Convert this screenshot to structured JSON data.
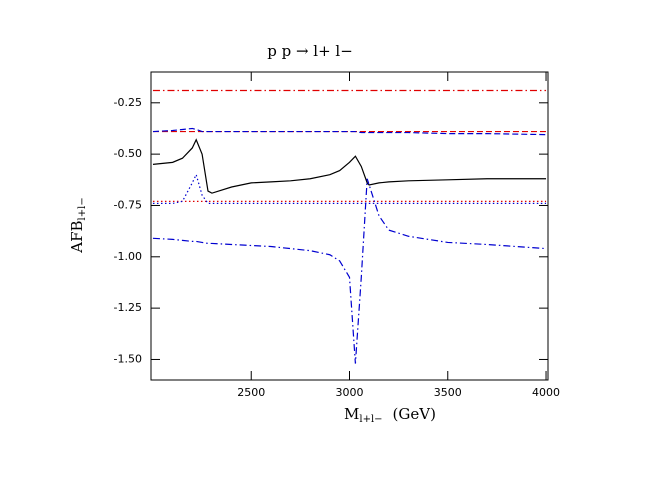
{
  "chart_data": {
    "type": "line",
    "title": "p p → l+ l−",
    "y_label": {
      "main": "AFB",
      "sub": "l+l−"
    },
    "x_label": {
      "main": "M",
      "sub": "l+l−",
      "unit": "(GeV)"
    },
    "xlim": [
      1990,
      4010
    ],
    "xticks": [
      2500,
      3000,
      3500,
      4000
    ],
    "ylim": [
      -1.6,
      -0.1
    ],
    "yticks": [
      -0.25,
      {
        "value": -0.5,
        "label": "-0.50"
      },
      -0.75,
      {
        "value": -1.0,
        "label": "-1.00"
      },
      -1.25,
      {
        "value": -1.5,
        "label": "-1.50"
      }
    ],
    "x": [
      2000,
      2100,
      2150,
      2200,
      2220,
      2250,
      2280,
      2300,
      2400,
      2500,
      2600,
      2700,
      2800,
      2900,
      2950,
      3000,
      3030,
      3060,
      3090,
      3100,
      3150,
      3200,
      3300,
      3500,
      3700,
      4000
    ],
    "series": [
      {
        "color": "#e00000",
        "dash": "dashdot",
        "values": [
          -0.19,
          -0.19,
          -0.19,
          -0.19,
          -0.19,
          -0.19,
          -0.19,
          -0.19,
          -0.19,
          -0.19,
          -0.19,
          -0.19,
          -0.19,
          -0.19,
          -0.19,
          -0.19,
          -0.19,
          -0.19,
          -0.19,
          -0.19,
          -0.19,
          -0.19,
          -0.19,
          -0.19,
          -0.19,
          -0.19
        ]
      },
      {
        "color": "#e00000",
        "dash": "dashed",
        "values": [
          -0.39,
          -0.39,
          -0.39,
          -0.39,
          -0.39,
          -0.39,
          -0.39,
          -0.39,
          -0.39,
          -0.39,
          -0.39,
          -0.39,
          -0.39,
          -0.39,
          -0.39,
          -0.39,
          -0.39,
          -0.39,
          -0.39,
          -0.39,
          -0.39,
          -0.39,
          -0.39,
          -0.39,
          -0.39,
          -0.39
        ]
      },
      {
        "color": "#0000d0",
        "dash": "dashed",
        "values": [
          -0.39,
          -0.385,
          -0.38,
          -0.375,
          -0.38,
          -0.39,
          -0.39,
          -0.39,
          -0.39,
          -0.39,
          -0.39,
          -0.39,
          -0.39,
          -0.39,
          -0.39,
          -0.39,
          -0.39,
          -0.395,
          -0.395,
          -0.395,
          -0.395,
          -0.395,
          -0.395,
          -0.4,
          -0.4,
          -0.405
        ]
      },
      {
        "color": "#000000",
        "dash": "solid",
        "values": [
          -0.55,
          -0.54,
          -0.52,
          -0.47,
          -0.43,
          -0.5,
          -0.68,
          -0.69,
          -0.66,
          -0.64,
          -0.635,
          -0.63,
          -0.62,
          -0.6,
          -0.58,
          -0.54,
          -0.51,
          -0.56,
          -0.64,
          -0.65,
          -0.64,
          -0.635,
          -0.63,
          -0.625,
          -0.62,
          -0.62
        ]
      },
      {
        "color": "#e00000",
        "dash": "dotted",
        "values": [
          -0.73,
          -0.73,
          -0.73,
          -0.73,
          -0.73,
          -0.73,
          -0.73,
          -0.73,
          -0.73,
          -0.73,
          -0.73,
          -0.73,
          -0.73,
          -0.73,
          -0.73,
          -0.73,
          -0.73,
          -0.73,
          -0.73,
          -0.73,
          -0.73,
          -0.73,
          -0.73,
          -0.73,
          -0.73,
          -0.73
        ]
      },
      {
        "color": "#0000d0",
        "dash": "dotted",
        "values": [
          -0.74,
          -0.74,
          -0.73,
          -0.64,
          -0.6,
          -0.7,
          -0.74,
          -0.74,
          -0.74,
          -0.74,
          -0.74,
          -0.74,
          -0.74,
          -0.74,
          -0.74,
          -0.74,
          -0.74,
          -0.74,
          -0.74,
          -0.74,
          -0.74,
          -0.74,
          -0.74,
          -0.74,
          -0.74,
          -0.74
        ]
      },
      {
        "color": "#0000d0",
        "dash": "dashdot",
        "values": [
          -0.91,
          -0.915,
          -0.92,
          -0.925,
          -0.925,
          -0.93,
          -0.935,
          -0.935,
          -0.94,
          -0.945,
          -0.95,
          -0.96,
          -0.97,
          -0.99,
          -1.02,
          -1.1,
          -1.52,
          -1.1,
          -0.62,
          -0.65,
          -0.8,
          -0.87,
          -0.9,
          -0.93,
          -0.94,
          -0.96
        ]
      }
    ]
  }
}
